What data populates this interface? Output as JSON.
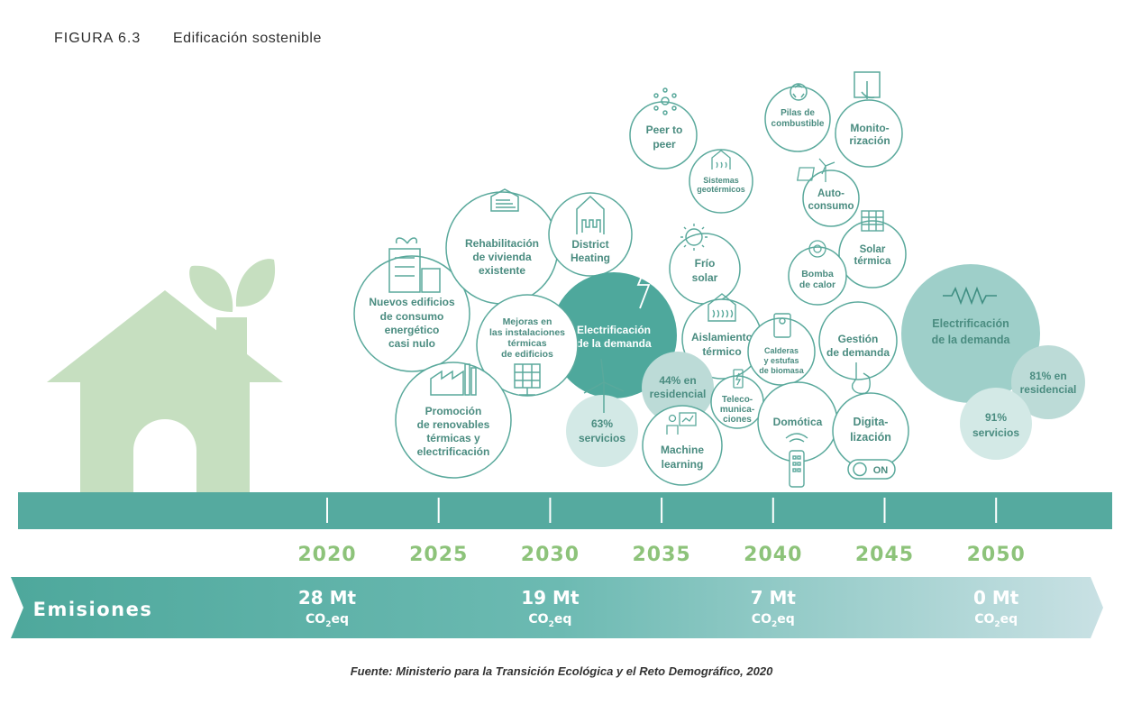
{
  "figure": {
    "label": "FIGURA 6.3",
    "title": "Edificación sostenible"
  },
  "bubbles": {
    "nuevos": [
      "Nuevos edificios",
      "de consumo",
      "energético",
      "casi nulo"
    ],
    "rehab": [
      "Rehabilitación",
      "de vivienda",
      "existente"
    ],
    "district": [
      "District",
      "Heating"
    ],
    "mejoras": [
      "Mejoras en",
      "las instalaciones",
      "térmicas",
      "de edificios"
    ],
    "electri1": [
      "Electrificación",
      "de la demanda"
    ],
    "promocion": [
      "Promoción",
      "de renovables",
      "térmicas y",
      "electrificación"
    ],
    "servicios63": [
      "63%",
      "servicios"
    ],
    "residencial44": [
      "44% en",
      "residencial"
    ],
    "peer": [
      "Peer to",
      "peer"
    ],
    "geotermicos": [
      "Sistemas",
      "geotérmicos"
    ],
    "pilas": [
      "Pilas de",
      "combustible"
    ],
    "monitor": [
      "Monito-",
      "rización"
    ],
    "autoconsumo": [
      "Auto-",
      "consumo"
    ],
    "frio": [
      "Frío",
      "solar"
    ],
    "solar_termica": [
      "Solar",
      "térmica"
    ],
    "bomba": [
      "Bomba",
      "de calor"
    ],
    "aislamiento": [
      "Aislamiento",
      "térmico"
    ],
    "calderas": [
      "Calderas",
      "y estufas",
      "de biomasa"
    ],
    "gestion": [
      "Gestión",
      "de demanda"
    ],
    "teleco": [
      "Teleco-",
      "munica-",
      "ciones"
    ],
    "domotica": [
      "Domótica"
    ],
    "digital": [
      "Digita-",
      "lización"
    ],
    "on_label": "ON",
    "machine": [
      "Machine",
      "learning"
    ],
    "electri2": [
      "Electrificación",
      "de la demanda"
    ],
    "residencial81": [
      "81% en",
      "residencial"
    ],
    "servicios91": [
      "91%",
      "servicios"
    ]
  },
  "timeline": {
    "years": [
      "2020",
      "2025",
      "2030",
      "2035",
      "2040",
      "2045",
      "2050"
    ]
  },
  "emissions": {
    "label": "Emisiones",
    "values": [
      {
        "value": "28 Mt",
        "unit": "CO2eq"
      },
      {
        "value": "19 Mt",
        "unit": "CO2eq"
      },
      {
        "value": "7 Mt",
        "unit": "CO2eq"
      },
      {
        "value": "0 Mt",
        "unit": "CO2eq"
      }
    ]
  },
  "source": "Fuente:  Ministerio para la Transición Ecológica y el Reto Demográfico, 2020",
  "colors": {
    "teal": "#55aa9f",
    "bubble_stroke": "#5aa99c",
    "house": "#c6dfc0",
    "year": "#8dc37a"
  }
}
